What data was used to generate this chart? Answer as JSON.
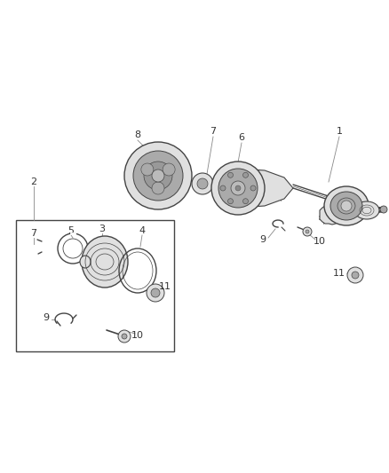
{
  "bg_color": "#ffffff",
  "line_color": "#444444",
  "text_color": "#333333",
  "fig_width": 4.38,
  "fig_height": 5.33,
  "dpi": 100
}
